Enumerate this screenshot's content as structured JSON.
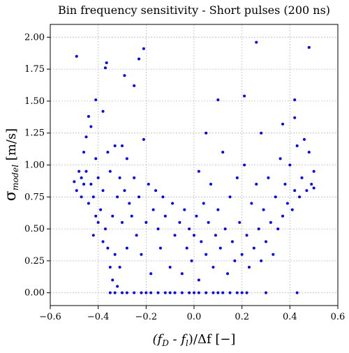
{
  "chart_data": {
    "type": "scatter",
    "title": "Bin frequency sensitivity - Short pulses (200 ns)",
    "xlabel": [
      "(f",
      "D",
      " - f",
      "l",
      ")/Δf [−]"
    ],
    "ylabel": [
      "σ",
      "model",
      " [m/s]"
    ],
    "xlim": [
      -0.6,
      0.6
    ],
    "ylim": [
      -0.1,
      2.1
    ],
    "xticks": [
      {
        "value": -0.6,
        "label": "−0.6"
      },
      {
        "value": -0.4,
        "label": "−0.4"
      },
      {
        "value": -0.2,
        "label": "−0.2"
      },
      {
        "value": 0,
        "label": "0.0"
      },
      {
        "value": 0.2,
        "label": "0.2"
      },
      {
        "value": 0.4,
        "label": "0.4"
      },
      {
        "value": 0.6,
        "label": "0.6"
      }
    ],
    "yticks": [
      {
        "value": 0,
        "label": "0.00"
      },
      {
        "value": 0.25,
        "label": "0.25"
      },
      {
        "value": 0.5,
        "label": "0.50"
      },
      {
        "value": 0.75,
        "label": "0.75"
      },
      {
        "value": 1,
        "label": "1.00"
      },
      {
        "value": 1.25,
        "label": "1.25"
      },
      {
        "value": 1.5,
        "label": "1.50"
      },
      {
        "value": 1.75,
        "label": "1.75"
      },
      {
        "value": 2,
        "label": "2.00"
      }
    ],
    "grid": true,
    "color": "#0000ee",
    "x": [
      -0.35,
      -0.33,
      -0.3,
      -0.28,
      -0.25,
      -0.22,
      -0.2,
      -0.18,
      -0.15,
      -0.12,
      -0.1,
      -0.08,
      -0.05,
      -0.02,
      0,
      0.02,
      0.05,
      0.08,
      0.1,
      0.12,
      0.15,
      0.18,
      0.2,
      0.22,
      0.3,
      0.43,
      -0.49,
      -0.37,
      -0.365,
      -0.29,
      -0.25,
      -0.23,
      -0.21,
      0.26,
      0.48,
      0.21,
      0.1,
      -0.41,
      0.42,
      -0.38,
      0.05,
      0.37,
      0.42,
      -0.5,
      -0.49,
      -0.48,
      -0.47,
      -0.47,
      -0.46,
      -0.46,
      -0.45,
      -0.45,
      -0.44,
      -0.44,
      -0.43,
      -0.43,
      -0.42,
      -0.42,
      -0.41,
      -0.41,
      -0.4,
      -0.4,
      -0.39,
      -0.38,
      -0.38,
      -0.37,
      -0.36,
      -0.36,
      -0.35,
      -0.35,
      -0.34,
      -0.34,
      -0.33,
      -0.33,
      -0.32,
      -0.32,
      -0.31,
      -0.31,
      -0.3,
      -0.3,
      -0.29,
      -0.28,
      -0.28,
      -0.27,
      -0.26,
      -0.25,
      -0.24,
      -0.23,
      -0.22,
      -0.21,
      -0.2,
      -0.19,
      -0.18,
      -0.17,
      -0.16,
      -0.15,
      -0.14,
      -0.13,
      -0.12,
      -0.1,
      -0.09,
      -0.08,
      -0.06,
      -0.05,
      -0.04,
      -0.03,
      -0.02,
      -0.01,
      0,
      0.01,
      0.02,
      0.02,
      0.03,
      0.04,
      0.05,
      0.06,
      0.07,
      0.08,
      0.09,
      0.1,
      0.11,
      0.12,
      0.13,
      0.14,
      0.15,
      0.16,
      0.17,
      0.18,
      0.19,
      0.2,
      0.21,
      0.22,
      0.23,
      0.24,
      0.25,
      0.26,
      0.27,
      0.28,
      0.28,
      0.29,
      0.3,
      0.31,
      0.32,
      0.33,
      0.34,
      0.35,
      0.36,
      0.37,
      0.38,
      0.39,
      0.4,
      0.41,
      0.42,
      0.43,
      0.44,
      0.45,
      0.46,
      0.47,
      0.48,
      0.49,
      0.5,
      0.5
    ],
    "values": [
      0,
      0,
      0,
      0,
      0,
      0,
      0,
      0,
      0,
      0,
      0,
      0,
      0,
      0,
      0,
      0,
      0,
      0,
      0,
      0,
      0,
      0,
      0,
      0,
      0,
      0,
      1.85,
      1.76,
      1.8,
      1.7,
      1.62,
      1.83,
      1.91,
      1.96,
      1.92,
      1.54,
      1.51,
      1.51,
      1.51,
      1.42,
      1.25,
      1.32,
      1.37,
      0.87,
      0.8,
      0.95,
      0.9,
      0.75,
      1.1,
      0.85,
      1.22,
      0.95,
      1.38,
      0.7,
      1.3,
      0.85,
      0.75,
      0.45,
      1.05,
      0.6,
      0.9,
      0.55,
      0.65,
      0.8,
      0.4,
      0.5,
      1.1,
      0.35,
      0.95,
      0.2,
      0.6,
      0.1,
      1.15,
      0.3,
      0.75,
      0.05,
      0.9,
      0.2,
      1.15,
      0.55,
      0.8,
      1.05,
      0.35,
      0.7,
      0.6,
      0.9,
      0.45,
      0.75,
      0.3,
      1.2,
      0.55,
      0.85,
      0.15,
      0.65,
      0.8,
      0.5,
      0.35,
      0.75,
      0.6,
      0.2,
      0.7,
      0.45,
      0.55,
      0.15,
      0.65,
      0.35,
      0.5,
      0.25,
      0.45,
      0.6,
      0.1,
      0.95,
      0.4,
      0.7,
      0.3,
      0.55,
      0.85,
      0.2,
      0.45,
      0.65,
      0.35,
      1.1,
      0.5,
      0.15,
      0.75,
      0.4,
      0.25,
      0.9,
      0.55,
      0.3,
      1.0,
      0.45,
      0.2,
      0.7,
      0.35,
      0.85,
      0.5,
      1.25,
      0.25,
      0.65,
      0.4,
      0.9,
      0.55,
      0.3,
      0.75,
      0.5,
      1.05,
      0.6,
      0.85,
      0.7,
      1.0,
      0.65,
      0.8,
      1.15,
      0.75,
      0.9,
      1.2,
      0.8,
      1.1,
      0.85,
      0.82,
      0.95
    ]
  }
}
